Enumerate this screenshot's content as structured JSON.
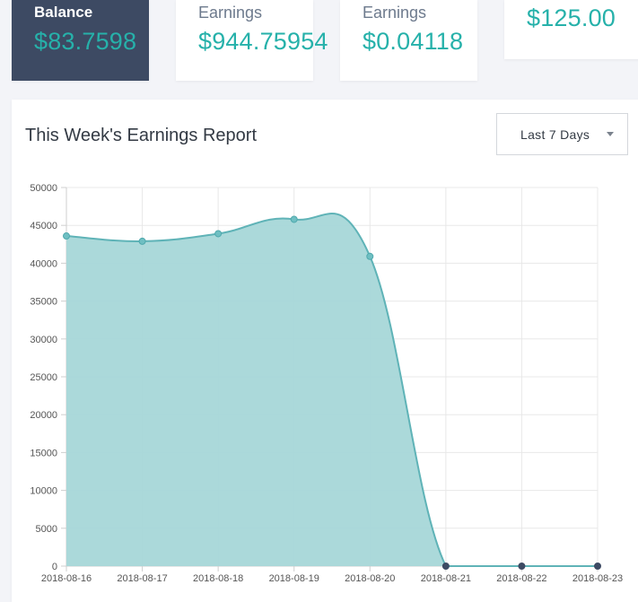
{
  "cards": [
    {
      "label": "Balance",
      "value": "$83.7598"
    },
    {
      "label": "Earnings",
      "value": "$944.75954"
    },
    {
      "label": "Earnings",
      "value": "$0.04118"
    },
    {
      "label": "",
      "value": "$125.00"
    }
  ],
  "report": {
    "title": "This Week's Earnings Report",
    "range": {
      "selected": "Last 7 Days"
    }
  },
  "colors": {
    "accent": "#26b1aa",
    "area_fill": "#a7d7d8",
    "area_line": "#5fb3b7",
    "dark_card": "#3d4a63"
  },
  "chart_data": {
    "type": "area",
    "title": "",
    "xlabel": "",
    "ylabel": "",
    "x": [
      "2018-08-16",
      "2018-08-17",
      "2018-08-18",
      "2018-08-19",
      "2018-08-20",
      "2018-08-21",
      "2018-08-22",
      "2018-08-23"
    ],
    "series": [
      {
        "values": [
          43600,
          42900,
          43900,
          45800,
          40900,
          0,
          0,
          0
        ]
      }
    ],
    "ylim": [
      0,
      50000
    ],
    "yticks": [
      0,
      5000,
      10000,
      15000,
      20000,
      25000,
      30000,
      35000,
      40000,
      45000,
      50000
    ],
    "grid": true,
    "legend": "none"
  }
}
